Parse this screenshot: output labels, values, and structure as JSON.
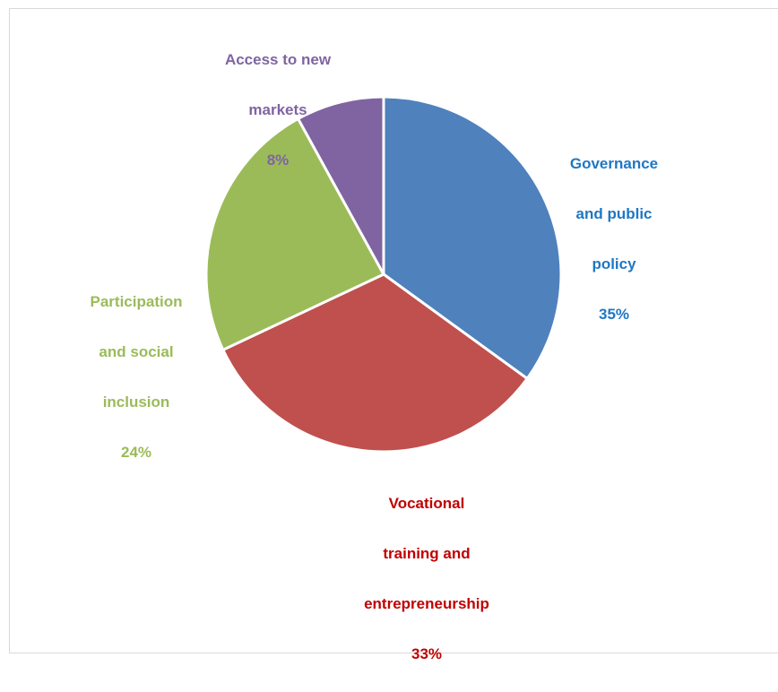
{
  "chart_data": {
    "type": "pie",
    "title": "",
    "slices": [
      {
        "label": "Governance and public policy",
        "label_lines": [
          "Governance",
          "and public",
          "policy"
        ],
        "value": 35,
        "value_text": "35%",
        "color": "#4F81BD",
        "label_color": "#1F77C4"
      },
      {
        "label": "Vocational training and entrepreneurship",
        "label_lines": [
          "Vocational",
          "training and",
          "entrepreneurship"
        ],
        "value": 33,
        "value_text": "33%",
        "color": "#C0504D",
        "label_color": "#C00000"
      },
      {
        "label": "Participation and social inclusion",
        "label_lines": [
          "Participation",
          "and social",
          "inclusion"
        ],
        "value": 24,
        "value_text": "24%",
        "color": "#9BBB59",
        "label_color": "#9BBB59"
      },
      {
        "label": "Access to new markets",
        "label_lines": [
          "Access to new",
          "markets"
        ],
        "value": 8,
        "value_text": "8%",
        "color": "#8064A2",
        "label_color": "#8064A2"
      }
    ],
    "start_angle_deg": 0,
    "direction": "clockwise",
    "legend": "none"
  }
}
